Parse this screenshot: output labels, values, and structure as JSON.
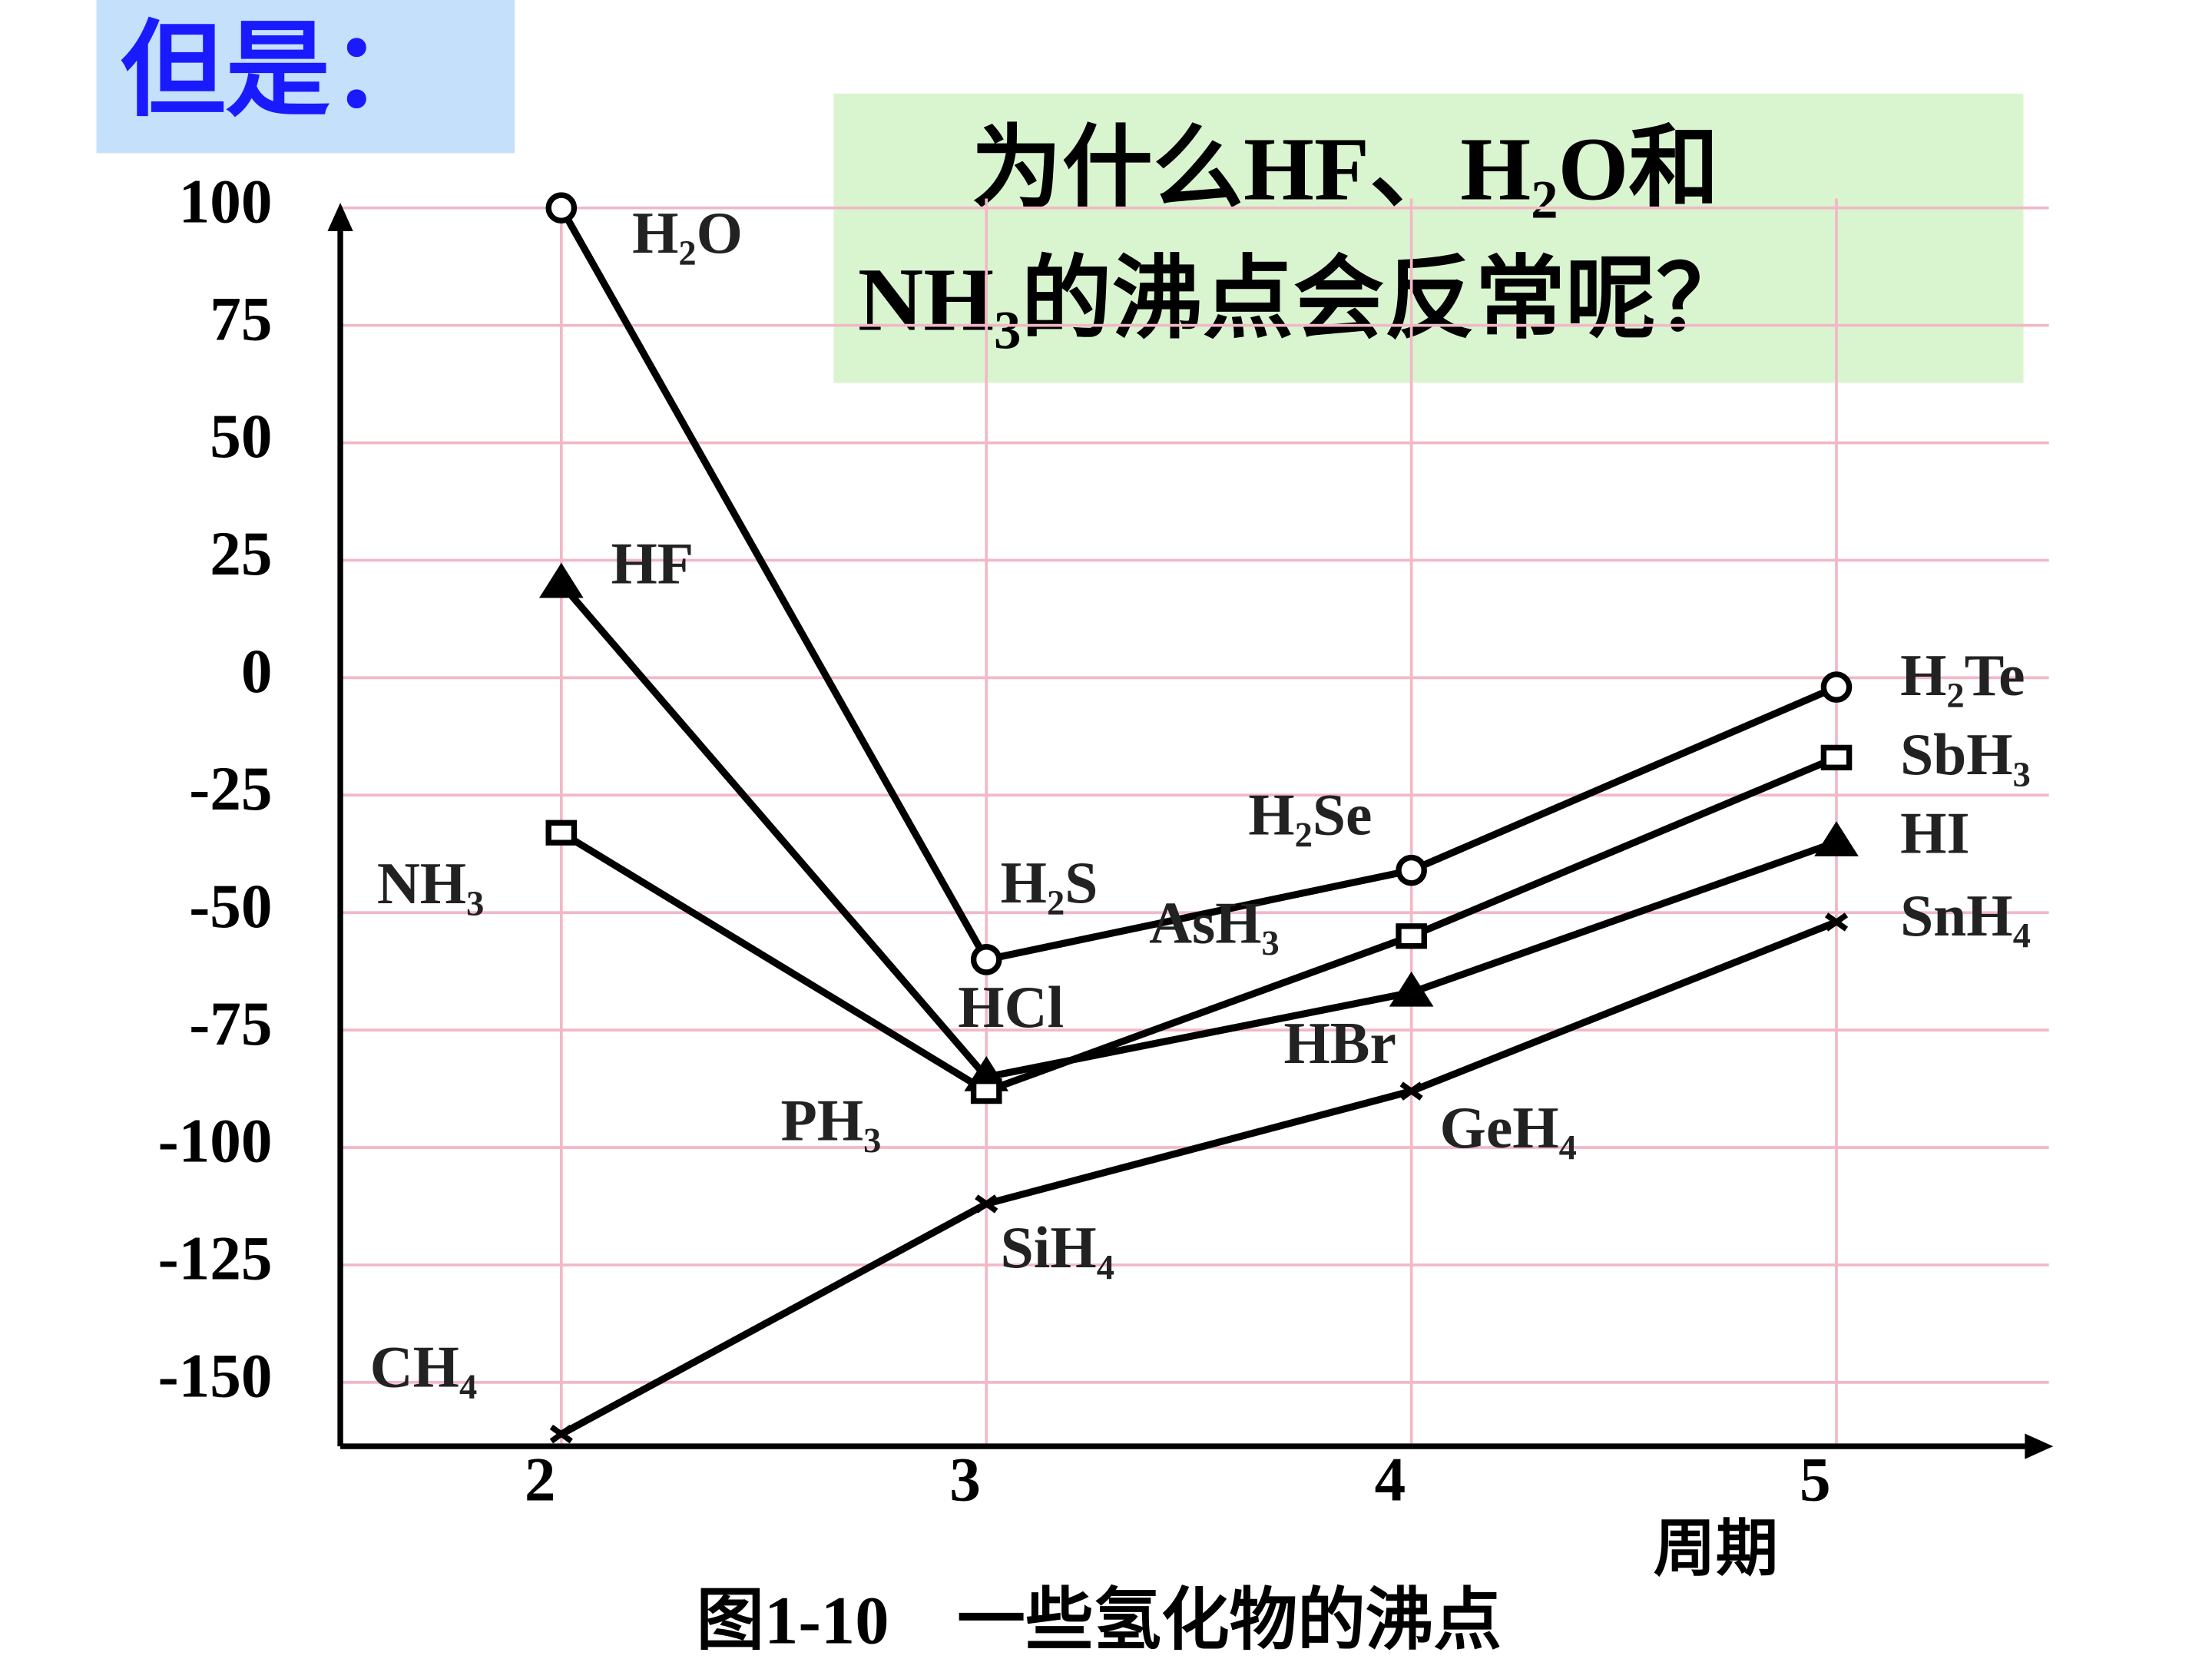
{
  "chart_data": {
    "type": "line",
    "header": "但是：",
    "question": [
      "为什么HF、H₂O和",
      "NH₃的沸点会反常呢？"
    ],
    "x_label": "周期",
    "caption": "图1-10　一些氢化物的沸点",
    "x": [
      2,
      3,
      4,
      5
    ],
    "xlim": [
      1.48,
      5.5
    ],
    "xticks": [
      2,
      3,
      4,
      5
    ],
    "ylim": [
      -163,
      102
    ],
    "yticks": [
      100,
      75,
      50,
      25,
      0,
      -25,
      -50,
      -75,
      -100,
      -125,
      -150
    ],
    "grid": true,
    "grid_color": "#f2b8c6",
    "series": [
      {
        "labels": [
          "H₂O",
          "H₂S",
          "H₂Se",
          "H₂Te"
        ],
        "values": [
          100,
          -60,
          -41,
          -2
        ],
        "marker": "circle",
        "color": "#000000"
      },
      {
        "labels": [
          "HF",
          "HCl",
          "HBr",
          "HI"
        ],
        "values": [
          20,
          -85,
          -67,
          -35
        ],
        "marker": "triangle",
        "color": "#000000"
      },
      {
        "labels": [
          "NH₃",
          "PH₃",
          "AsH₃",
          "SbH₃"
        ],
        "values": [
          -33,
          -88,
          -55,
          -17
        ],
        "marker": "square",
        "color": "#000000"
      },
      {
        "labels": [
          "CH₄",
          "SiH₄",
          "GeH₄",
          "SnH₄"
        ],
        "values": [
          -161,
          -112,
          -88,
          -52
        ],
        "marker": "cross",
        "color": "#000000"
      }
    ]
  }
}
